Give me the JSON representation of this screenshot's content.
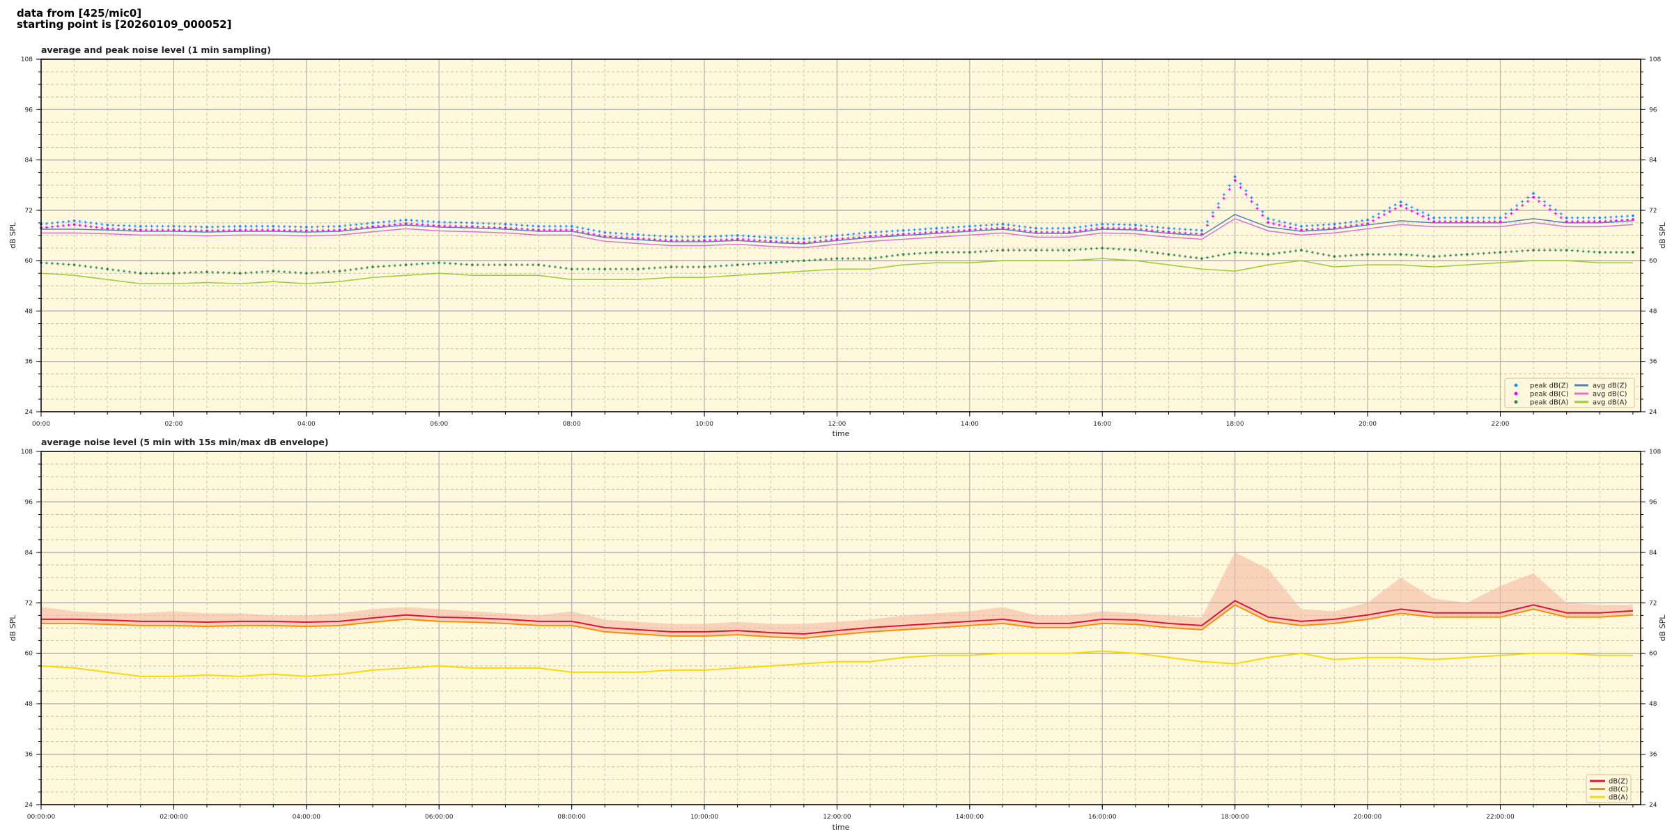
{
  "header": {
    "line1": "data from [425/mic0]",
    "line2": "starting point is [20260109_000052]"
  },
  "chart_data": [
    {
      "type": "line",
      "title": "average and peak noise level (1 min sampling)",
      "xlabel": "time",
      "ylabel": "dB SPL",
      "ylim": [
        24,
        108
      ],
      "yticks": [
        24,
        36,
        48,
        60,
        72,
        84,
        96,
        108
      ],
      "xlim": [
        "00:00",
        "24:07"
      ],
      "xticks": [
        "00:00",
        "02:00",
        "04:00",
        "06:00",
        "08:00",
        "10:00",
        "12:00",
        "14:00",
        "16:00",
        "18:00",
        "20:00",
        "22:00"
      ],
      "grid": true,
      "background": "#fff8dc",
      "legend_position": "lower-right",
      "x": [
        "00:00",
        "00:30",
        "01:00",
        "01:30",
        "02:00",
        "02:30",
        "03:00",
        "03:30",
        "04:00",
        "04:30",
        "05:00",
        "05:30",
        "06:00",
        "06:30",
        "07:00",
        "07:30",
        "08:00",
        "08:30",
        "09:00",
        "09:30",
        "10:00",
        "10:30",
        "11:00",
        "11:30",
        "12:00",
        "12:30",
        "13:00",
        "13:30",
        "14:00",
        "14:30",
        "15:00",
        "15:30",
        "16:00",
        "16:30",
        "17:00",
        "17:30",
        "18:00",
        "18:30",
        "19:00",
        "19:30",
        "20:00",
        "20:30",
        "21:00",
        "21:30",
        "22:00",
        "22:30",
        "23:00",
        "23:30",
        "24:00"
      ],
      "series": [
        {
          "name": "peak dB(Z)",
          "kind": "scatter",
          "color": "#1e90ff",
          "values": [
            68.7,
            69.5,
            68.5,
            68.2,
            68.2,
            68,
            68.2,
            68.2,
            68,
            68.2,
            69,
            69.7,
            69.2,
            69,
            68.7,
            68.2,
            68.2,
            66.7,
            66.2,
            65.7,
            65.7,
            66,
            65.5,
            65.2,
            66,
            66.7,
            67.2,
            67.7,
            68.2,
            68.7,
            67.7,
            67.7,
            68.7,
            68.5,
            67.7,
            67.2,
            80,
            70,
            68.2,
            68.7,
            69.7,
            74,
            70.2,
            70.2,
            70.2,
            76,
            70.2,
            70.2,
            70.7
          ]
        },
        {
          "name": "peak dB(C)",
          "kind": "scatter",
          "color": "#ff00ff",
          "values": [
            67.8,
            68.6,
            67.6,
            67.3,
            67.3,
            67.1,
            67.3,
            67.3,
            67.1,
            67.3,
            68.1,
            68.8,
            68.3,
            68.1,
            67.8,
            67.3,
            67.3,
            65.8,
            65.3,
            64.8,
            64.8,
            65.1,
            64.6,
            64.3,
            65.1,
            65.8,
            66.3,
            66.8,
            67.3,
            67.8,
            66.8,
            66.8,
            67.8,
            67.6,
            66.8,
            66.3,
            79.1,
            69.1,
            67.3,
            67.8,
            68.8,
            73.1,
            69.3,
            69.3,
            69.3,
            75.1,
            69.3,
            69.3,
            69.8
          ]
        },
        {
          "name": "peak dB(A)",
          "kind": "scatter",
          "color": "#2e8b57",
          "values": [
            59.5,
            59,
            58,
            57,
            57,
            57.3,
            57,
            57.5,
            57,
            57.5,
            58.5,
            59,
            59.5,
            59,
            59,
            59,
            58,
            58,
            58,
            58.5,
            58.5,
            59,
            59.5,
            60,
            60.5,
            60.5,
            61.5,
            62,
            62,
            62.5,
            62.5,
            62.5,
            63,
            62.5,
            61.5,
            60.5,
            62,
            61.5,
            62.5,
            61,
            61.5,
            61.5,
            61,
            61.5,
            62,
            62.5,
            62.5,
            62,
            62
          ]
        },
        {
          "name": "avg dB(Z)",
          "kind": "line",
          "color": "#4f83b0",
          "values": [
            67.5,
            67.5,
            67.3,
            67,
            67,
            66.8,
            67,
            67,
            66.8,
            67,
            67.8,
            68.5,
            68,
            67.8,
            67.5,
            67,
            67,
            65.5,
            65,
            64.5,
            64.5,
            64.8,
            64.3,
            64,
            64.8,
            65.5,
            66,
            66.5,
            67,
            67.5,
            66.5,
            66.5,
            67.5,
            67.3,
            66.5,
            66,
            71,
            68,
            67,
            67.5,
            68.5,
            69.5,
            69,
            69,
            69,
            70,
            69,
            69,
            69.5
          ]
        },
        {
          "name": "avg dB(C)",
          "kind": "line",
          "color": "#da70d6",
          "values": [
            66.6,
            66.6,
            66.4,
            66.1,
            66.1,
            65.9,
            66.1,
            66.1,
            65.9,
            66.1,
            66.9,
            67.6,
            67.1,
            66.9,
            66.6,
            66.1,
            66.1,
            64.6,
            64.1,
            63.6,
            63.6,
            63.9,
            63.4,
            63.1,
            63.9,
            64.6,
            65.1,
            65.6,
            66.1,
            66.6,
            65.6,
            65.6,
            66.6,
            66.4,
            65.6,
            65.1,
            70.0,
            67.1,
            66.1,
            66.6,
            67.6,
            68.6,
            68.1,
            68.1,
            68.1,
            69.1,
            68.1,
            68.1,
            68.6
          ]
        },
        {
          "name": "avg dB(A)",
          "kind": "line",
          "color": "#9acd32",
          "values": [
            57,
            56.5,
            55.5,
            54.5,
            54.5,
            54.8,
            54.5,
            55,
            54.5,
            55,
            56,
            56.5,
            57,
            56.5,
            56.5,
            56.5,
            55.5,
            55.5,
            55.5,
            56,
            56,
            56.5,
            57,
            57.5,
            58,
            58,
            59,
            59.5,
            59.5,
            60,
            60,
            60,
            60.5,
            60,
            59,
            58,
            57.5,
            59,
            60,
            58.5,
            59,
            59,
            58.5,
            59,
            59.5,
            60,
            60,
            59.5,
            59.5
          ]
        }
      ]
    },
    {
      "type": "line",
      "title": "average noise level (5 min with 15s min/max dB envelope)",
      "xlabel": "time",
      "ylabel": "dB SPL",
      "ylim": [
        24,
        108
      ],
      "yticks": [
        24,
        36,
        48,
        60,
        72,
        84,
        96,
        108
      ],
      "xlim": [
        "00:00:00",
        "24:07:00"
      ],
      "xticks": [
        "00:00:00",
        "02:00:00",
        "04:00:00",
        "06:00:00",
        "08:00:00",
        "10:00:00",
        "12:00:00",
        "14:00:00",
        "16:00:00",
        "18:00:00",
        "20:00:00",
        "22:00:00"
      ],
      "grid": true,
      "background": "#fff8dc",
      "legend_position": "lower-right",
      "envelope_color": "#f4b49c",
      "x": [
        "00:00",
        "00:30",
        "01:00",
        "01:30",
        "02:00",
        "02:30",
        "03:00",
        "03:30",
        "04:00",
        "04:30",
        "05:00",
        "05:30",
        "06:00",
        "06:30",
        "07:00",
        "07:30",
        "08:00",
        "08:30",
        "09:00",
        "09:30",
        "10:00",
        "10:30",
        "11:00",
        "11:30",
        "12:00",
        "12:30",
        "13:00",
        "13:30",
        "14:00",
        "14:30",
        "15:00",
        "15:30",
        "16:00",
        "16:30",
        "17:00",
        "17:30",
        "18:00",
        "18:30",
        "19:00",
        "19:30",
        "20:00",
        "20:30",
        "21:00",
        "21:30",
        "22:00",
        "22:30",
        "23:00",
        "23:30",
        "24:00"
      ],
      "envelope_max": [
        71,
        70,
        69.5,
        69.5,
        70,
        69.5,
        69.5,
        69,
        69,
        69.5,
        70.5,
        71,
        70.5,
        70,
        69.5,
        69,
        70,
        68,
        67.5,
        67,
        67,
        67.5,
        67,
        67,
        67.5,
        68,
        69,
        69.5,
        70,
        71,
        69,
        69,
        70,
        69.5,
        69,
        68.5,
        84,
        80,
        70.5,
        70,
        72,
        78,
        73,
        72,
        76,
        79,
        72,
        71.5,
        71.5
      ],
      "series": [
        {
          "name": "dB(Z)",
          "color": "#dc143c",
          "values": [
            68.1,
            68.1,
            67.9,
            67.6,
            67.6,
            67.4,
            67.6,
            67.6,
            67.4,
            67.6,
            68.4,
            69.1,
            68.6,
            68.4,
            68.1,
            67.6,
            67.6,
            66.1,
            65.6,
            65.1,
            65.1,
            65.4,
            64.9,
            64.6,
            65.4,
            66.1,
            66.6,
            67.1,
            67.6,
            68.1,
            67.1,
            67.1,
            68.1,
            67.9,
            67.1,
            66.6,
            72.5,
            68.6,
            67.6,
            68.1,
            69.1,
            70.5,
            69.6,
            69.6,
            69.6,
            71.5,
            69.6,
            69.6,
            70.1
          ]
        },
        {
          "name": "dB(C)",
          "color": "#ff8c00",
          "values": [
            67.1,
            67.1,
            66.9,
            66.6,
            66.6,
            66.4,
            66.6,
            66.6,
            66.4,
            66.6,
            67.4,
            68.1,
            67.6,
            67.4,
            67.1,
            66.6,
            66.6,
            65.1,
            64.6,
            64.1,
            64.1,
            64.4,
            63.9,
            63.6,
            64.4,
            65.1,
            65.6,
            66.1,
            66.6,
            67.1,
            66.1,
            66.1,
            67.1,
            66.9,
            66.1,
            65.6,
            71.5,
            67.6,
            66.6,
            67.1,
            68.1,
            69.5,
            68.6,
            68.6,
            68.6,
            70.5,
            68.6,
            68.6,
            69.1
          ]
        },
        {
          "name": "dB(A)",
          "color": "#ffd700",
          "values": [
            57,
            56.5,
            55.5,
            54.5,
            54.5,
            54.8,
            54.5,
            55,
            54.5,
            55,
            56,
            56.5,
            57,
            56.5,
            56.5,
            56.5,
            55.5,
            55.5,
            55.5,
            56,
            56,
            56.5,
            57,
            57.5,
            58,
            58,
            59,
            59.5,
            59.5,
            60,
            60,
            60,
            60.5,
            60,
            59,
            58,
            57.5,
            59,
            60,
            58.5,
            59,
            59,
            58.5,
            59,
            59.5,
            60,
            60,
            59.5,
            59.5
          ]
        }
      ]
    }
  ]
}
